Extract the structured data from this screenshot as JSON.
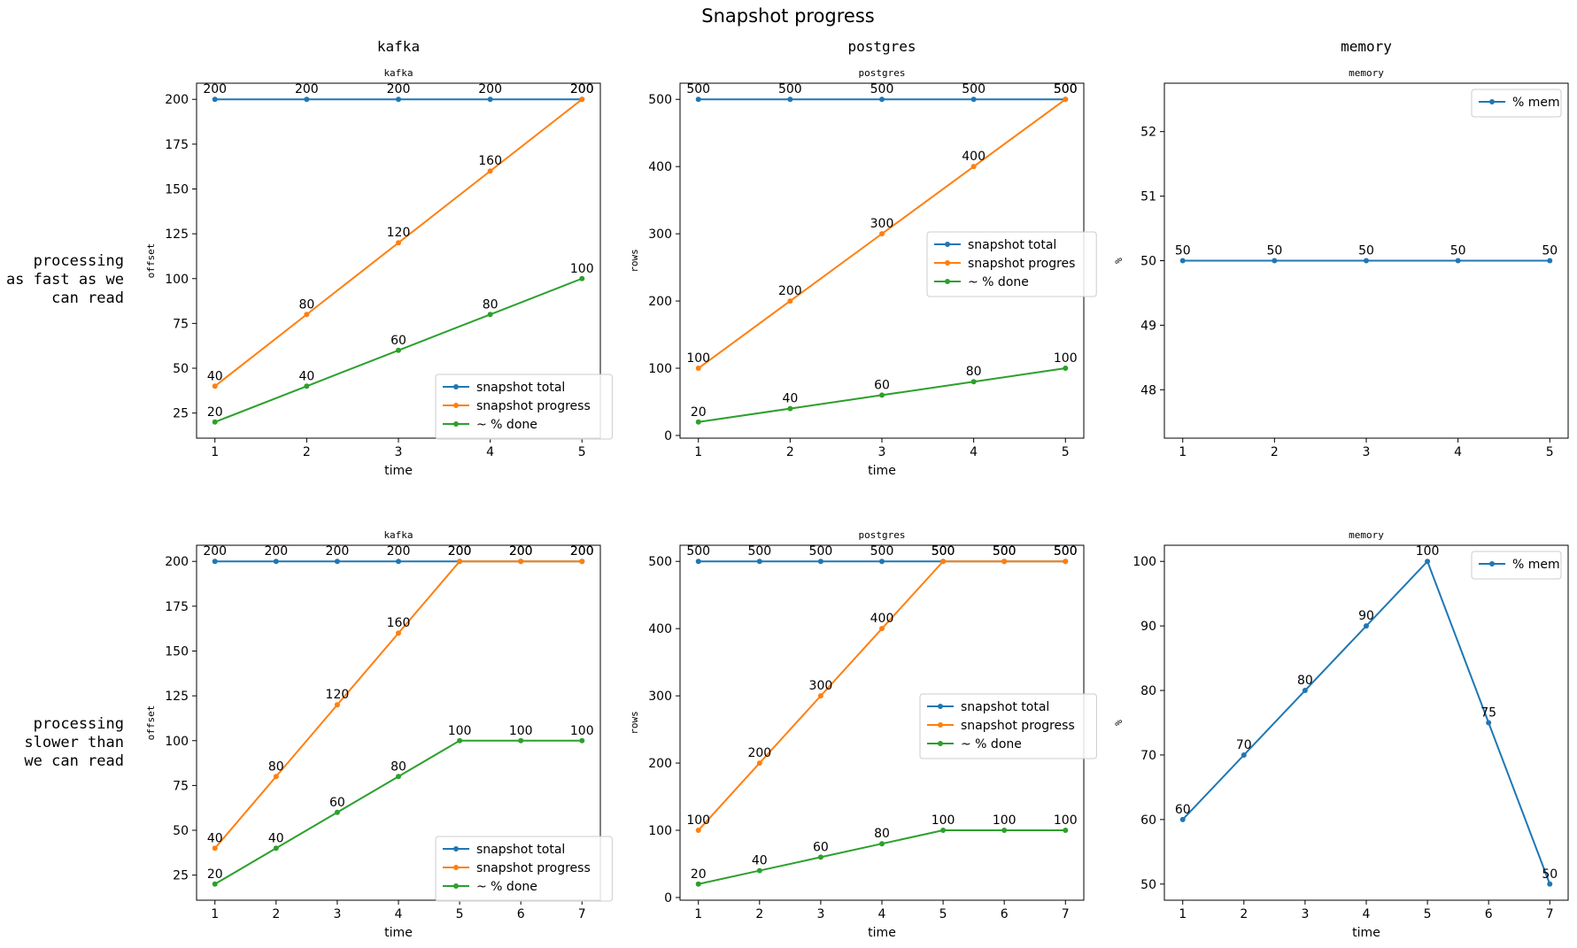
{
  "figure": {
    "title": "Snapshot progress",
    "column_headers": [
      "kafka",
      "postgres",
      "memory"
    ],
    "row_labels": [
      [
        "processing",
        "as fast as we",
        "can read"
      ],
      [
        "processing",
        "slower than",
        "we can read"
      ]
    ]
  },
  "colors": {
    "snapshot_total": "#1f77b4",
    "snapshot_progress": "#ff7f0e",
    "pct_done": "#2ca02c",
    "mem": "#1f77b4"
  },
  "chart_data": [
    {
      "type": "line",
      "title": "kafka",
      "xlabel": "time",
      "ylabel": "offset",
      "x": [
        1,
        2,
        3,
        4,
        5
      ],
      "xlim": [
        0.8,
        5.2
      ],
      "ylim": [
        11,
        209
      ],
      "yticks": [
        25,
        50,
        75,
        100,
        125,
        150,
        175,
        200
      ],
      "legend": "lower right",
      "grid": false,
      "series": [
        {
          "name": "snapshot total",
          "color": "#1f77b4",
          "values": [
            200,
            200,
            200,
            200,
            200
          ]
        },
        {
          "name": "snapshot progress",
          "color": "#ff7f0e",
          "values": [
            40,
            80,
            120,
            160,
            200
          ]
        },
        {
          "name": "~ % done",
          "color": "#2ca02c",
          "values": [
            20,
            40,
            60,
            80,
            100
          ]
        }
      ]
    },
    {
      "type": "line",
      "title": "postgres",
      "xlabel": "time",
      "ylabel": "rows",
      "x": [
        1,
        2,
        3,
        4,
        5
      ],
      "xlim": [
        0.8,
        5.2
      ],
      "ylim": [
        -4,
        524
      ],
      "yticks": [
        0,
        100,
        200,
        300,
        400,
        500
      ],
      "legend": "center right",
      "grid": false,
      "series": [
        {
          "name": "snapshot total",
          "color": "#1f77b4",
          "values": [
            500,
            500,
            500,
            500,
            500
          ]
        },
        {
          "name": "snapshot progres",
          "color": "#ff7f0e",
          "values": [
            100,
            200,
            300,
            400,
            500
          ]
        },
        {
          "name": "~ % done",
          "color": "#2ca02c",
          "values": [
            20,
            40,
            60,
            80,
            100
          ]
        }
      ]
    },
    {
      "type": "line",
      "title": "memory",
      "xlabel": "",
      "ylabel": "%",
      "x": [
        1,
        2,
        3,
        4,
        5
      ],
      "xlim": [
        0.8,
        5.2
      ],
      "ylim": [
        47.25,
        52.75
      ],
      "yticks": [
        48,
        49,
        50,
        51,
        52
      ],
      "legend": "upper right",
      "grid": false,
      "series": [
        {
          "name": "% mem",
          "color": "#1f77b4",
          "values": [
            50,
            50,
            50,
            50,
            50
          ]
        }
      ]
    },
    {
      "type": "line",
      "title": "kafka",
      "xlabel": "time",
      "ylabel": "offset",
      "x": [
        1,
        2,
        3,
        4,
        5,
        6,
        7
      ],
      "xlim": [
        0.7,
        7.3
      ],
      "ylim": [
        11,
        209
      ],
      "yticks": [
        25,
        50,
        75,
        100,
        125,
        150,
        175,
        200
      ],
      "legend": "lower right",
      "grid": false,
      "series": [
        {
          "name": "snapshot total",
          "color": "#1f77b4",
          "values": [
            200,
            200,
            200,
            200,
            200,
            200,
            200
          ]
        },
        {
          "name": "snapshot progress",
          "color": "#ff7f0e",
          "values": [
            40,
            80,
            120,
            160,
            200,
            200,
            200
          ]
        },
        {
          "name": "~ % done",
          "color": "#2ca02c",
          "values": [
            20,
            40,
            60,
            80,
            100,
            100,
            100
          ]
        }
      ]
    },
    {
      "type": "line",
      "title": "postgres",
      "xlabel": "time",
      "ylabel": "rows",
      "x": [
        1,
        2,
        3,
        4,
        5,
        6,
        7
      ],
      "xlim": [
        0.7,
        7.3
      ],
      "ylim": [
        -4,
        524
      ],
      "yticks": [
        0,
        100,
        200,
        300,
        400,
        500
      ],
      "legend": "center right",
      "grid": false,
      "series": [
        {
          "name": "snapshot total",
          "color": "#1f77b4",
          "values": [
            500,
            500,
            500,
            500,
            500,
            500,
            500
          ]
        },
        {
          "name": "snapshot progress",
          "color": "#ff7f0e",
          "values": [
            100,
            200,
            300,
            400,
            500,
            500,
            500
          ]
        },
        {
          "name": "~ % done",
          "color": "#2ca02c",
          "values": [
            20,
            40,
            60,
            80,
            100,
            100,
            100
          ]
        }
      ]
    },
    {
      "type": "line",
      "title": "memory",
      "xlabel": "time",
      "ylabel": "%",
      "x": [
        1,
        2,
        3,
        4,
        5,
        6,
        7
      ],
      "xlim": [
        0.7,
        7.3
      ],
      "ylim": [
        47.5,
        102.5
      ],
      "yticks": [
        50,
        60,
        70,
        80,
        90,
        100
      ],
      "legend": "upper right",
      "grid": false,
      "series": [
        {
          "name": "% mem",
          "color": "#1f77b4",
          "values": [
            60,
            70,
            80,
            90,
            100,
            75,
            50
          ]
        }
      ]
    }
  ]
}
